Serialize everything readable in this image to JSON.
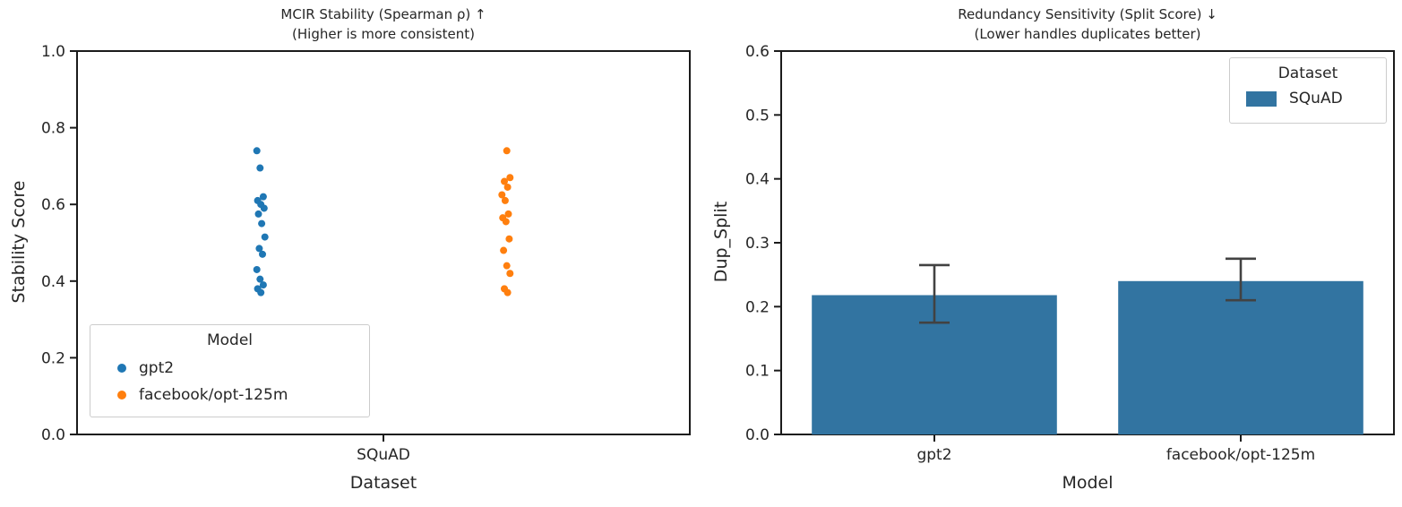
{
  "chart_data": [
    {
      "type": "scatter",
      "title": "MCIR Stability (Spearman ρ) ↑",
      "subtitle": "(Higher is more consistent)",
      "xlabel": "Dataset",
      "ylabel": "Stability Score",
      "categories": [
        "SQuAD"
      ],
      "ylim": [
        0.0,
        1.0
      ],
      "yticks": [
        0.0,
        0.2,
        0.4,
        0.6,
        0.8,
        1.0
      ],
      "grid": false,
      "legend": {
        "title": "Model",
        "position": "lower left"
      },
      "series": [
        {
          "name": "gpt2",
          "color": "#1f77b4",
          "values": [
            0.74,
            0.695,
            0.62,
            0.61,
            0.6,
            0.59,
            0.575,
            0.55,
            0.515,
            0.485,
            0.47,
            0.43,
            0.405,
            0.39,
            0.38,
            0.37
          ]
        },
        {
          "name": "facebook/opt-125m",
          "color": "#ff7f0e",
          "values": [
            0.74,
            0.67,
            0.66,
            0.645,
            0.625,
            0.61,
            0.575,
            0.565,
            0.555,
            0.51,
            0.48,
            0.44,
            0.42,
            0.38,
            0.37
          ]
        }
      ]
    },
    {
      "type": "bar",
      "title": "Redundancy Sensitivity (Split Score) ↓",
      "subtitle": "(Lower handles duplicates better)",
      "xlabel": "Model",
      "ylabel": "Dup_Split",
      "categories": [
        "gpt2",
        "facebook/opt-125m"
      ],
      "values": [
        0.218,
        0.24
      ],
      "error_low": [
        0.175,
        0.21
      ],
      "error_high": [
        0.265,
        0.275
      ],
      "bar_color": "#3274a1",
      "error_color": "#424242",
      "ylim": [
        0.0,
        0.6
      ],
      "yticks": [
        0.0,
        0.1,
        0.2,
        0.3,
        0.4,
        0.5,
        0.6
      ],
      "grid": false,
      "legend": {
        "title": "Dataset",
        "entries": [
          "SQuAD"
        ],
        "position": "upper right"
      }
    }
  ]
}
